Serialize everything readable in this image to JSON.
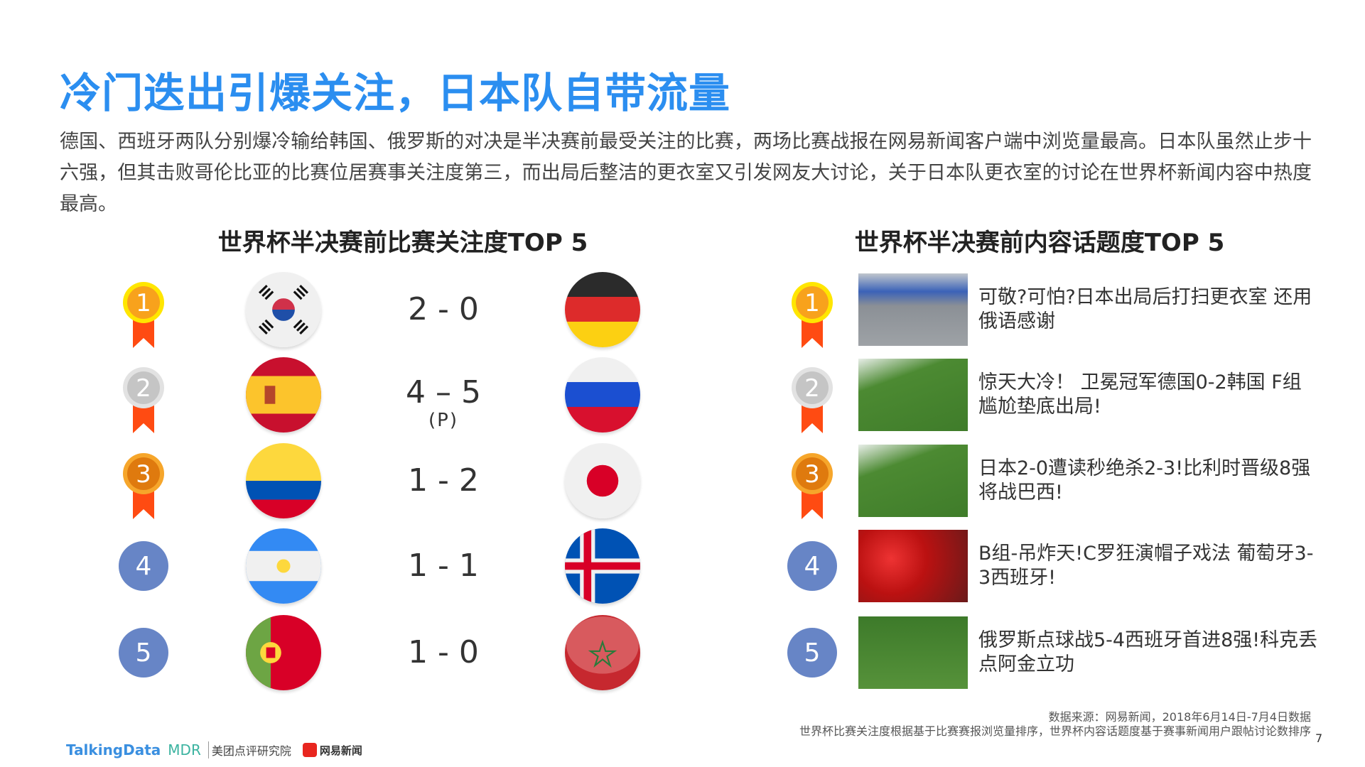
{
  "title": "冷门迭出引爆关注，日本队自带流量",
  "intro": "德国、西班牙两队分别爆冷输给韩国、俄罗斯的对决是半决赛前最受关注的比赛，两场比赛战报在网易新闻客户端中浏览量最高。日本队虽然止步十六强，但其击败哥伦比亚的比赛位居赛事关注度第三，而出局后整洁的更衣室又引发网友大讨论，关于日本队更衣室的讨论在世界杯新闻内容中热度最高。",
  "left": {
    "heading": "世界杯半决赛前比赛关注度TOP 5",
    "rows": [
      {
        "rank": "1",
        "medal": "gold",
        "home": "korea",
        "score": "2 - 0",
        "note": "",
        "away": "germany"
      },
      {
        "rank": "2",
        "medal": "silver",
        "home": "spain",
        "score": "4 – 5",
        "note": "(P)",
        "away": "russia"
      },
      {
        "rank": "3",
        "medal": "bronze",
        "home": "colombia",
        "score": "1 - 2",
        "note": "",
        "away": "japan"
      },
      {
        "rank": "4",
        "medal": "none",
        "home": "argentina",
        "score": "1 - 1",
        "note": "",
        "away": "iceland"
      },
      {
        "rank": "5",
        "medal": "none",
        "home": "portugal",
        "score": "1 - 0",
        "note": "",
        "away": "morocco"
      }
    ]
  },
  "right": {
    "heading": "世界杯半决赛前内容话题度TOP 5",
    "rows": [
      {
        "rank": "1",
        "medal": "gold",
        "photo": "locker-room",
        "text": "可敬?可怕?日本出局后打扫更衣室 还用俄语感谢"
      },
      {
        "rank": "2",
        "medal": "silver",
        "photo": "goal-action",
        "text": "惊天大冷！ 卫冕冠军德国0-2韩国 F组尴尬垫底出局!"
      },
      {
        "rank": "3",
        "medal": "bronze",
        "photo": "goal-action",
        "text": "日本2-0遭读秒绝杀2-3!比利时晋级8强将战巴西!"
      },
      {
        "rank": "4",
        "medal": "none",
        "photo": "crowd",
        "text": "B组-吊炸天!C罗狂演帽子戏法 葡萄牙3-3西班牙!"
      },
      {
        "rank": "5",
        "medal": "none",
        "photo": "celebration",
        "text": "俄罗斯点球战5-4西班牙首进8强!科克丢点阿金立功"
      }
    ]
  },
  "footer": {
    "source": "数据来源：网易新闻，2018年6月14日-7月4日数据",
    "method": "世界杯比赛关注度根据基于比赛赛报浏览量排序，世界杯内容话题度基于赛事新闻用户跟帖讨论数排序",
    "page": "7",
    "logos": [
      "TalkingData",
      "MDR",
      "美团点评研究院",
      "网易新闻"
    ]
  },
  "colors": {
    "title": "#2b8ef0",
    "rank_circle": "#6785c6",
    "ribbon": "#ff4b12"
  }
}
